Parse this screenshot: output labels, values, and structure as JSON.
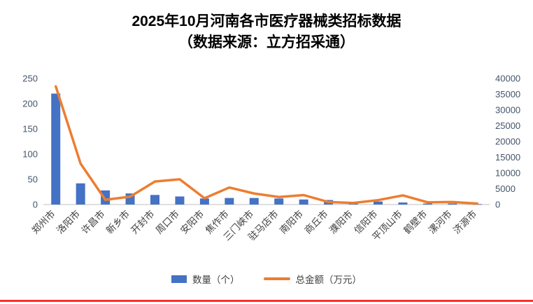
{
  "title": {
    "line1": "2025年10月河南各市医疗器械类招标数据",
    "line2": "（数据来源：立方招采通）"
  },
  "colors": {
    "bar": "#4472C4",
    "line": "#ED7D31",
    "axis_text": "#44546A",
    "category_text": "#404040",
    "baseline": "#BFBFBF",
    "bottom_rule": "#FF2E2E"
  },
  "legend": [
    {
      "label": "数量（个）",
      "type": "bar",
      "color": "#4472C4"
    },
    {
      "label": "总金额（万元）",
      "type": "line",
      "color": "#ED7D31"
    }
  ],
  "chart_data": {
    "type": "bar",
    "subtype": "combo-bar-line-dual-axis",
    "title": "2025年10月河南各市医疗器械类招标数据（数据来源：立方招采通）",
    "xlabel": "",
    "ylabel_left": "数量（个）",
    "ylabel_right": "总金额（万元）",
    "grid": false,
    "legend_position": "bottom",
    "categories": [
      "郑州市",
      "洛阳市",
      "许昌市",
      "新乡市",
      "开封市",
      "周口市",
      "安阳市",
      "焦作市",
      "三门峡市",
      "驻马店市",
      "南阳市",
      "商丘市",
      "濮阳市",
      "信阳市",
      "平顶山市",
      "鹤壁市",
      "漯河市",
      "济源市"
    ],
    "series": [
      {
        "name": "数量（个）",
        "type": "bar",
        "axis": "left",
        "values": [
          220,
          42,
          28,
          22,
          19,
          16,
          12,
          13,
          13,
          12,
          10,
          9,
          4,
          6,
          4,
          2,
          2,
          1
        ]
      },
      {
        "name": "总金额（万元）",
        "type": "line",
        "axis": "right",
        "values": [
          37500,
          13000,
          1500,
          2500,
          7300,
          8000,
          2000,
          5400,
          3500,
          2400,
          3000,
          800,
          500,
          1400,
          2900,
          700,
          800,
          300
        ]
      }
    ],
    "left_axis": {
      "min": 0,
      "max": 250,
      "step": 50,
      "ticks": [
        0,
        50,
        100,
        150,
        200,
        250
      ]
    },
    "right_axis": {
      "min": 0,
      "max": 40000,
      "step": 5000,
      "ticks": [
        0,
        5000,
        10000,
        15000,
        20000,
        25000,
        30000,
        35000,
        40000
      ]
    }
  }
}
